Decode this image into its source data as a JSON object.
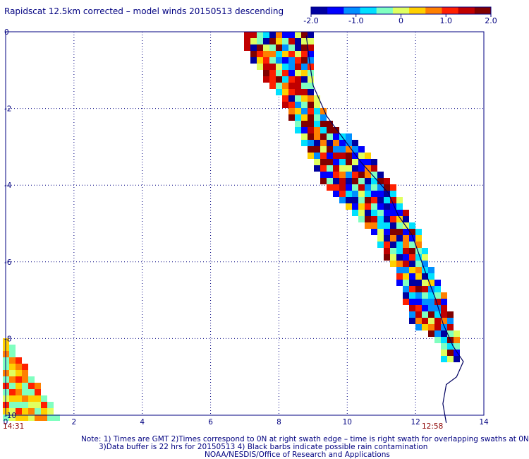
{
  "title": "Rapidscat 12.5km corrected – model winds 20150513 descending",
  "colorbar": {
    "ticks": [
      "-2.0",
      "-1.0",
      "0",
      "1.0",
      "2.0"
    ],
    "range": [
      -2.0,
      2.0
    ],
    "colors": [
      "#0000a0",
      "#0000ff",
      "#0090ff",
      "#00e0ff",
      "#80ffc0",
      "#e0ff60",
      "#ffd000",
      "#ff8000",
      "#ff2000",
      "#c00000",
      "#800000"
    ]
  },
  "axes": {
    "x_ticks": [
      "0",
      "2",
      "4",
      "6",
      "8",
      "10",
      "12",
      "14"
    ],
    "y_ticks": [
      "0",
      "-2",
      "-4",
      "-6",
      "-8",
      "-10"
    ],
    "xlim": [
      0,
      14
    ],
    "ylim": [
      -10,
      0
    ],
    "grid": true
  },
  "time_labels": {
    "left": "14:31",
    "right": "12:58"
  },
  "notes": {
    "line1": "Note: 1) Times are GMT 2)Times correspond to 0N at right swath edge – time is right swath for overlapping swaths at 0N",
    "line2": "3)Data buffer is 22 hrs for 20150513 4) Black barbs indicate possible rain contamination",
    "line3": "NOAA/NESDIS/Office of Research and Applications"
  },
  "swath_main": {
    "rows": [
      {
        "y": 0.0,
        "x0": 6.9,
        "x1": 8.9
      },
      {
        "y": -0.8,
        "x0": 7.3,
        "x1": 8.9
      },
      {
        "y": -1.5,
        "x0": 7.9,
        "x1": 9.0
      },
      {
        "y": -2.2,
        "x0": 8.4,
        "x1": 9.4
      },
      {
        "y": -3.0,
        "x0": 8.8,
        "x1": 10.4
      },
      {
        "y": -3.8,
        "x0": 9.3,
        "x1": 11.2
      },
      {
        "y": -4.5,
        "x0": 10.0,
        "x1": 11.6
      },
      {
        "y": -5.3,
        "x0": 10.8,
        "x1": 12.1
      },
      {
        "y": -6.0,
        "x0": 11.3,
        "x1": 12.3
      },
      {
        "y": -6.8,
        "x0": 11.7,
        "x1": 12.8
      },
      {
        "y": -7.5,
        "x0": 11.8,
        "x1": 13.0
      },
      {
        "y": -8.0,
        "x0": 12.7,
        "x1": 13.2
      },
      {
        "y": -8.6,
        "x0": 12.8,
        "x1": 13.3
      }
    ]
  },
  "swath_corner": {
    "rows": [
      {
        "y": -8.0,
        "x0": 0.0,
        "x1": 0.05
      },
      {
        "y": -8.8,
        "x0": 0.0,
        "x1": 0.6
      },
      {
        "y": -9.4,
        "x0": 0.0,
        "x1": 1.1
      },
      {
        "y": -10.0,
        "x0": 0.0,
        "x1": 1.5
      }
    ]
  },
  "coastline": [
    [
      8.8,
      -0.1
    ],
    [
      8.9,
      -0.8
    ],
    [
      9.0,
      -1.4
    ],
    [
      9.4,
      -2.2
    ],
    [
      9.9,
      -2.8
    ],
    [
      10.4,
      -3.4
    ],
    [
      10.9,
      -3.9
    ],
    [
      11.2,
      -4.2
    ],
    [
      11.5,
      -4.8
    ],
    [
      11.9,
      -5.3
    ],
    [
      12.1,
      -5.8
    ],
    [
      12.3,
      -6.3
    ],
    [
      12.6,
      -7.0
    ],
    [
      12.8,
      -7.6
    ],
    [
      13.1,
      -8.2
    ],
    [
      13.4,
      -8.6
    ],
    [
      13.2,
      -9.0
    ],
    [
      12.9,
      -9.2
    ],
    [
      12.8,
      -9.7
    ],
    [
      12.9,
      -10.2
    ]
  ]
}
